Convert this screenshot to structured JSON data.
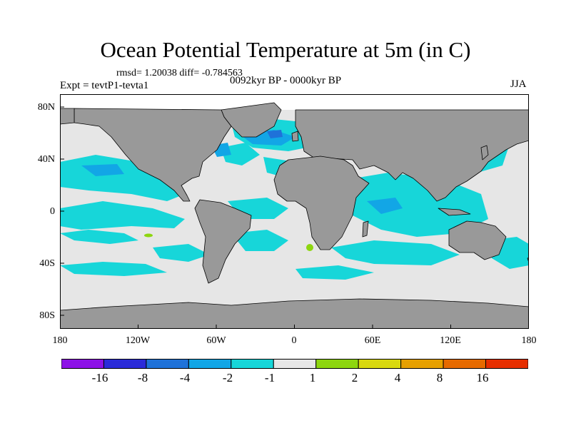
{
  "title": "Ocean Potential Temperature at 5m (in C)",
  "stats": "rmsd= 1.20038  diff= -0.784563",
  "period": "0092kyr BP - 0000kyr BP",
  "expt": "Expt = tevtP1-tevta1",
  "season": "JJA",
  "lat_labels": [
    "80N",
    "40N",
    "0",
    "40S",
    "80S"
  ],
  "lon_labels": [
    "180",
    "120W",
    "60W",
    "0",
    "60E",
    "120E",
    "180"
  ],
  "colorbar": {
    "labels": [
      "-16",
      "-8",
      "-4",
      "-2",
      "-1",
      "1",
      "2",
      "4",
      "8",
      "16"
    ],
    "colors": [
      "#8d12e6",
      "#2b2bd9",
      "#1f72d9",
      "#12a6e6",
      "#17d6d9",
      "#e6e6e6",
      "#8dd60f",
      "#d9d90f",
      "#e6a000",
      "#e66a00",
      "#e62e00"
    ]
  },
  "colors": {
    "land": "#999999",
    "neutral_ocean": "#e6e6e6",
    "cyan": "#17d6d9",
    "light_blue": "#12a6e6",
    "blue": "#1f72d9",
    "green": "#8dd60f"
  }
}
